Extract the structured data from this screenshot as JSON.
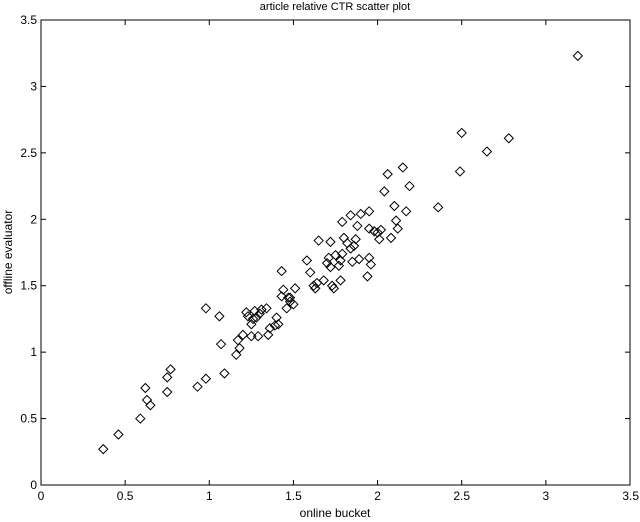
{
  "chart_data": {
    "type": "scatter",
    "title": "article relative CTR scatter plot",
    "xlabel": "online bucket",
    "ylabel": "offline evaluator",
    "xlim": [
      0,
      3.5
    ],
    "ylim": [
      0,
      3.5
    ],
    "xticks": [
      "0",
      "0.5",
      "1",
      "1.5",
      "2",
      "2.5",
      "3",
      "3.5"
    ],
    "yticks": [
      "0",
      "0.5",
      "1",
      "1.5",
      "2",
      "2.5",
      "3",
      "3.5"
    ],
    "grid": false,
    "marker": "diamond-open",
    "color": "#000000",
    "points": [
      [
        0.37,
        0.27
      ],
      [
        0.46,
        0.38
      ],
      [
        0.59,
        0.5
      ],
      [
        0.62,
        0.73
      ],
      [
        0.63,
        0.64
      ],
      [
        0.65,
        0.6
      ],
      [
        0.75,
        0.81
      ],
      [
        0.75,
        0.7
      ],
      [
        0.77,
        0.87
      ],
      [
        0.93,
        0.74
      ],
      [
        0.98,
        0.8
      ],
      [
        0.98,
        1.33
      ],
      [
        1.06,
        1.27
      ],
      [
        1.07,
        1.06
      ],
      [
        1.09,
        0.84
      ],
      [
        1.16,
        0.98
      ],
      [
        1.17,
        1.09
      ],
      [
        1.18,
        1.03
      ],
      [
        1.2,
        1.13
      ],
      [
        1.22,
        1.3
      ],
      [
        1.23,
        1.27
      ],
      [
        1.25,
        1.12
      ],
      [
        1.25,
        1.21
      ],
      [
        1.26,
        1.25
      ],
      [
        1.27,
        1.31
      ],
      [
        1.28,
        1.26
      ],
      [
        1.29,
        1.12
      ],
      [
        1.3,
        1.29
      ],
      [
        1.31,
        1.32
      ],
      [
        1.34,
        1.33
      ],
      [
        1.35,
        1.13
      ],
      [
        1.36,
        1.18
      ],
      [
        1.39,
        1.2
      ],
      [
        1.4,
        1.26
      ],
      [
        1.41,
        1.21
      ],
      [
        1.43,
        1.42
      ],
      [
        1.43,
        1.61
      ],
      [
        1.44,
        1.47
      ],
      [
        1.46,
        1.33
      ],
      [
        1.47,
        1.41
      ],
      [
        1.48,
        1.38
      ],
      [
        1.48,
        1.41
      ],
      [
        1.5,
        1.36
      ],
      [
        1.51,
        1.48
      ],
      [
        1.58,
        1.69
      ],
      [
        1.6,
        1.6
      ],
      [
        1.62,
        1.5
      ],
      [
        1.63,
        1.48
      ],
      [
        1.64,
        1.52
      ],
      [
        1.65,
        1.84
      ],
      [
        1.68,
        1.54
      ],
      [
        1.7,
        1.67
      ],
      [
        1.71,
        1.71
      ],
      [
        1.72,
        1.64
      ],
      [
        1.72,
        1.83
      ],
      [
        1.73,
        1.5
      ],
      [
        1.74,
        1.48
      ],
      [
        1.75,
        1.73
      ],
      [
        1.77,
        1.65
      ],
      [
        1.78,
        1.54
      ],
      [
        1.78,
        1.69
      ],
      [
        1.79,
        1.74
      ],
      [
        1.79,
        1.98
      ],
      [
        1.8,
        1.86
      ],
      [
        1.82,
        1.82
      ],
      [
        1.84,
        1.78
      ],
      [
        1.84,
        2.03
      ],
      [
        1.85,
        1.68
      ],
      [
        1.86,
        1.8
      ],
      [
        1.87,
        1.85
      ],
      [
        1.88,
        1.95
      ],
      [
        1.89,
        1.7
      ],
      [
        1.9,
        2.04
      ],
      [
        1.94,
        1.57
      ],
      [
        1.95,
        1.93
      ],
      [
        1.95,
        1.71
      ],
      [
        1.95,
        2.06
      ],
      [
        1.96,
        1.66
      ],
      [
        1.98,
        1.91
      ],
      [
        2.0,
        1.9
      ],
      [
        2.01,
        1.85
      ],
      [
        2.02,
        1.92
      ],
      [
        2.04,
        2.21
      ],
      [
        2.06,
        2.34
      ],
      [
        2.08,
        1.86
      ],
      [
        2.1,
        2.1
      ],
      [
        2.11,
        1.99
      ],
      [
        2.12,
        1.93
      ],
      [
        2.15,
        2.39
      ],
      [
        2.17,
        2.06
      ],
      [
        2.19,
        2.25
      ],
      [
        2.36,
        2.09
      ],
      [
        2.49,
        2.36
      ],
      [
        2.5,
        2.65
      ],
      [
        2.65,
        2.51
      ],
      [
        2.78,
        2.61
      ],
      [
        3.19,
        3.23
      ]
    ]
  }
}
